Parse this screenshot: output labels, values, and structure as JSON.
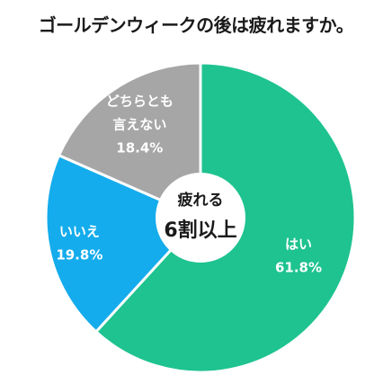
{
  "chart_data": {
    "type": "pie",
    "title": "ゴールデンウィークの後は疲れますか。",
    "slices": [
      {
        "label_lines": [
          "はい"
        ],
        "value": 61.8,
        "value_text": "61.8%",
        "color": "#1ec38f"
      },
      {
        "label_lines": [
          "いいえ"
        ],
        "value": 19.8,
        "value_text": "19.8%",
        "color": "#14acec"
      },
      {
        "label_lines": [
          "どちらとも",
          "言えない"
        ],
        "value": 18.4,
        "value_text": "18.4%",
        "color": "#a6a6a6"
      }
    ],
    "center_text": [
      "疲れる",
      "6割以上"
    ]
  }
}
